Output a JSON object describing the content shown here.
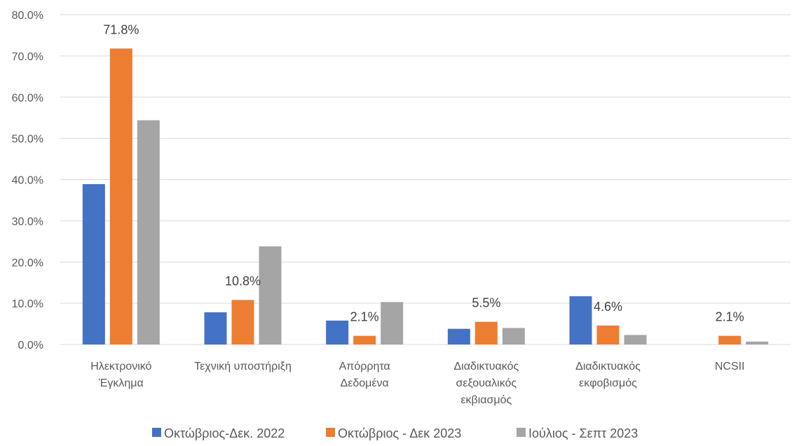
{
  "chart_data": {
    "type": "bar",
    "title": "",
    "xlabel": "",
    "ylabel": "",
    "ylim": [
      0,
      80
    ],
    "y_ticks": [
      "0.0%",
      "10.0%",
      "20.0%",
      "30.0%",
      "40.0%",
      "50.0%",
      "60.0%",
      "70.0%",
      "80.0%"
    ],
    "grid": true,
    "legend_position": "bottom",
    "categories": [
      [
        "Ηλεκτρονικό",
        "Έγκλημα"
      ],
      [
        "Τεχνική υποστήριξη"
      ],
      [
        "Απόρρητα",
        "Δεδομένα"
      ],
      [
        "Διαδικτυακός",
        "σεξουαλικός",
        "εκβιασμός"
      ],
      [
        "Διαδικτυακός",
        "εκφοβισμός"
      ],
      [
        "NCSII"
      ]
    ],
    "series": [
      {
        "name": "Οκτώβριος-Δεκ. 2022",
        "color": "#4472C4",
        "values": [
          38.9,
          7.8,
          5.8,
          3.8,
          11.7,
          0.0
        ],
        "labels": [
          null,
          null,
          null,
          null,
          null,
          null
        ]
      },
      {
        "name": "Οκτώβριος - Δεκ 2023",
        "color": "#ED7D31",
        "values": [
          71.8,
          10.8,
          2.1,
          5.5,
          4.6,
          2.1
        ],
        "labels": [
          "71.8%",
          "10.8%",
          "2.1%",
          "5.5%",
          "4.6%",
          "2.1%"
        ]
      },
      {
        "name": "Ιούλιος - Σεπτ 2023",
        "color": "#A5A5A5",
        "values": [
          54.4,
          23.8,
          10.3,
          4.0,
          2.3,
          0.7
        ],
        "labels": [
          null,
          null,
          null,
          null,
          null,
          null
        ]
      }
    ],
    "gridline_color": "#D9D9D9"
  }
}
